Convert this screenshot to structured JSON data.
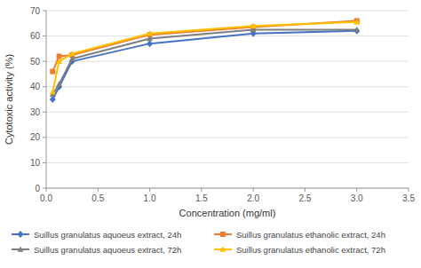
{
  "chart_data": {
    "type": "line",
    "x": [
      0.0625,
      0.125,
      0.25,
      1.0,
      2.0,
      3.0
    ],
    "series": [
      {
        "name": "Suillus granulatus aquoeus extract, 24h",
        "color": "#4472C4",
        "marker": "diamond",
        "values": [
          35,
          40,
          50,
          57,
          61,
          62
        ]
      },
      {
        "name": "Suillus granulatus ethanolic extract, 24h",
        "color": "#ED7D31",
        "marker": "square",
        "values": [
          46,
          52,
          52.5,
          60.5,
          63.5,
          66
        ]
      },
      {
        "name": "Suillus granulatus aquoeus extract, 72h",
        "color": "#7F7F7F",
        "marker": "triangle",
        "values": [
          37,
          41,
          51,
          59,
          62.5,
          62.5
        ]
      },
      {
        "name": "Suillus granulatus ethanolic extract, 72h",
        "color": "#FFC000",
        "marker": "triangle",
        "values": [
          38,
          50,
          53,
          61,
          64,
          65.5
        ]
      }
    ],
    "xlabel": "Concentration (mg/ml)",
    "ylabel": "Cytotoxic activity (%)",
    "xlim": [
      0,
      3.5
    ],
    "ylim": [
      0,
      70
    ],
    "xticks": [
      {
        "value": 0,
        "label": "0.0"
      },
      0.5,
      {
        "value": 1.0,
        "label": "1.0"
      },
      1.5,
      {
        "value": 2.0,
        "label": "2.0"
      },
      2.5,
      {
        "value": 3.0,
        "label": "3.0"
      },
      3.5
    ],
    "yticks": [
      0,
      10,
      20,
      30,
      40,
      50,
      60,
      70
    ],
    "grid": "y",
    "legend": "bottom"
  }
}
